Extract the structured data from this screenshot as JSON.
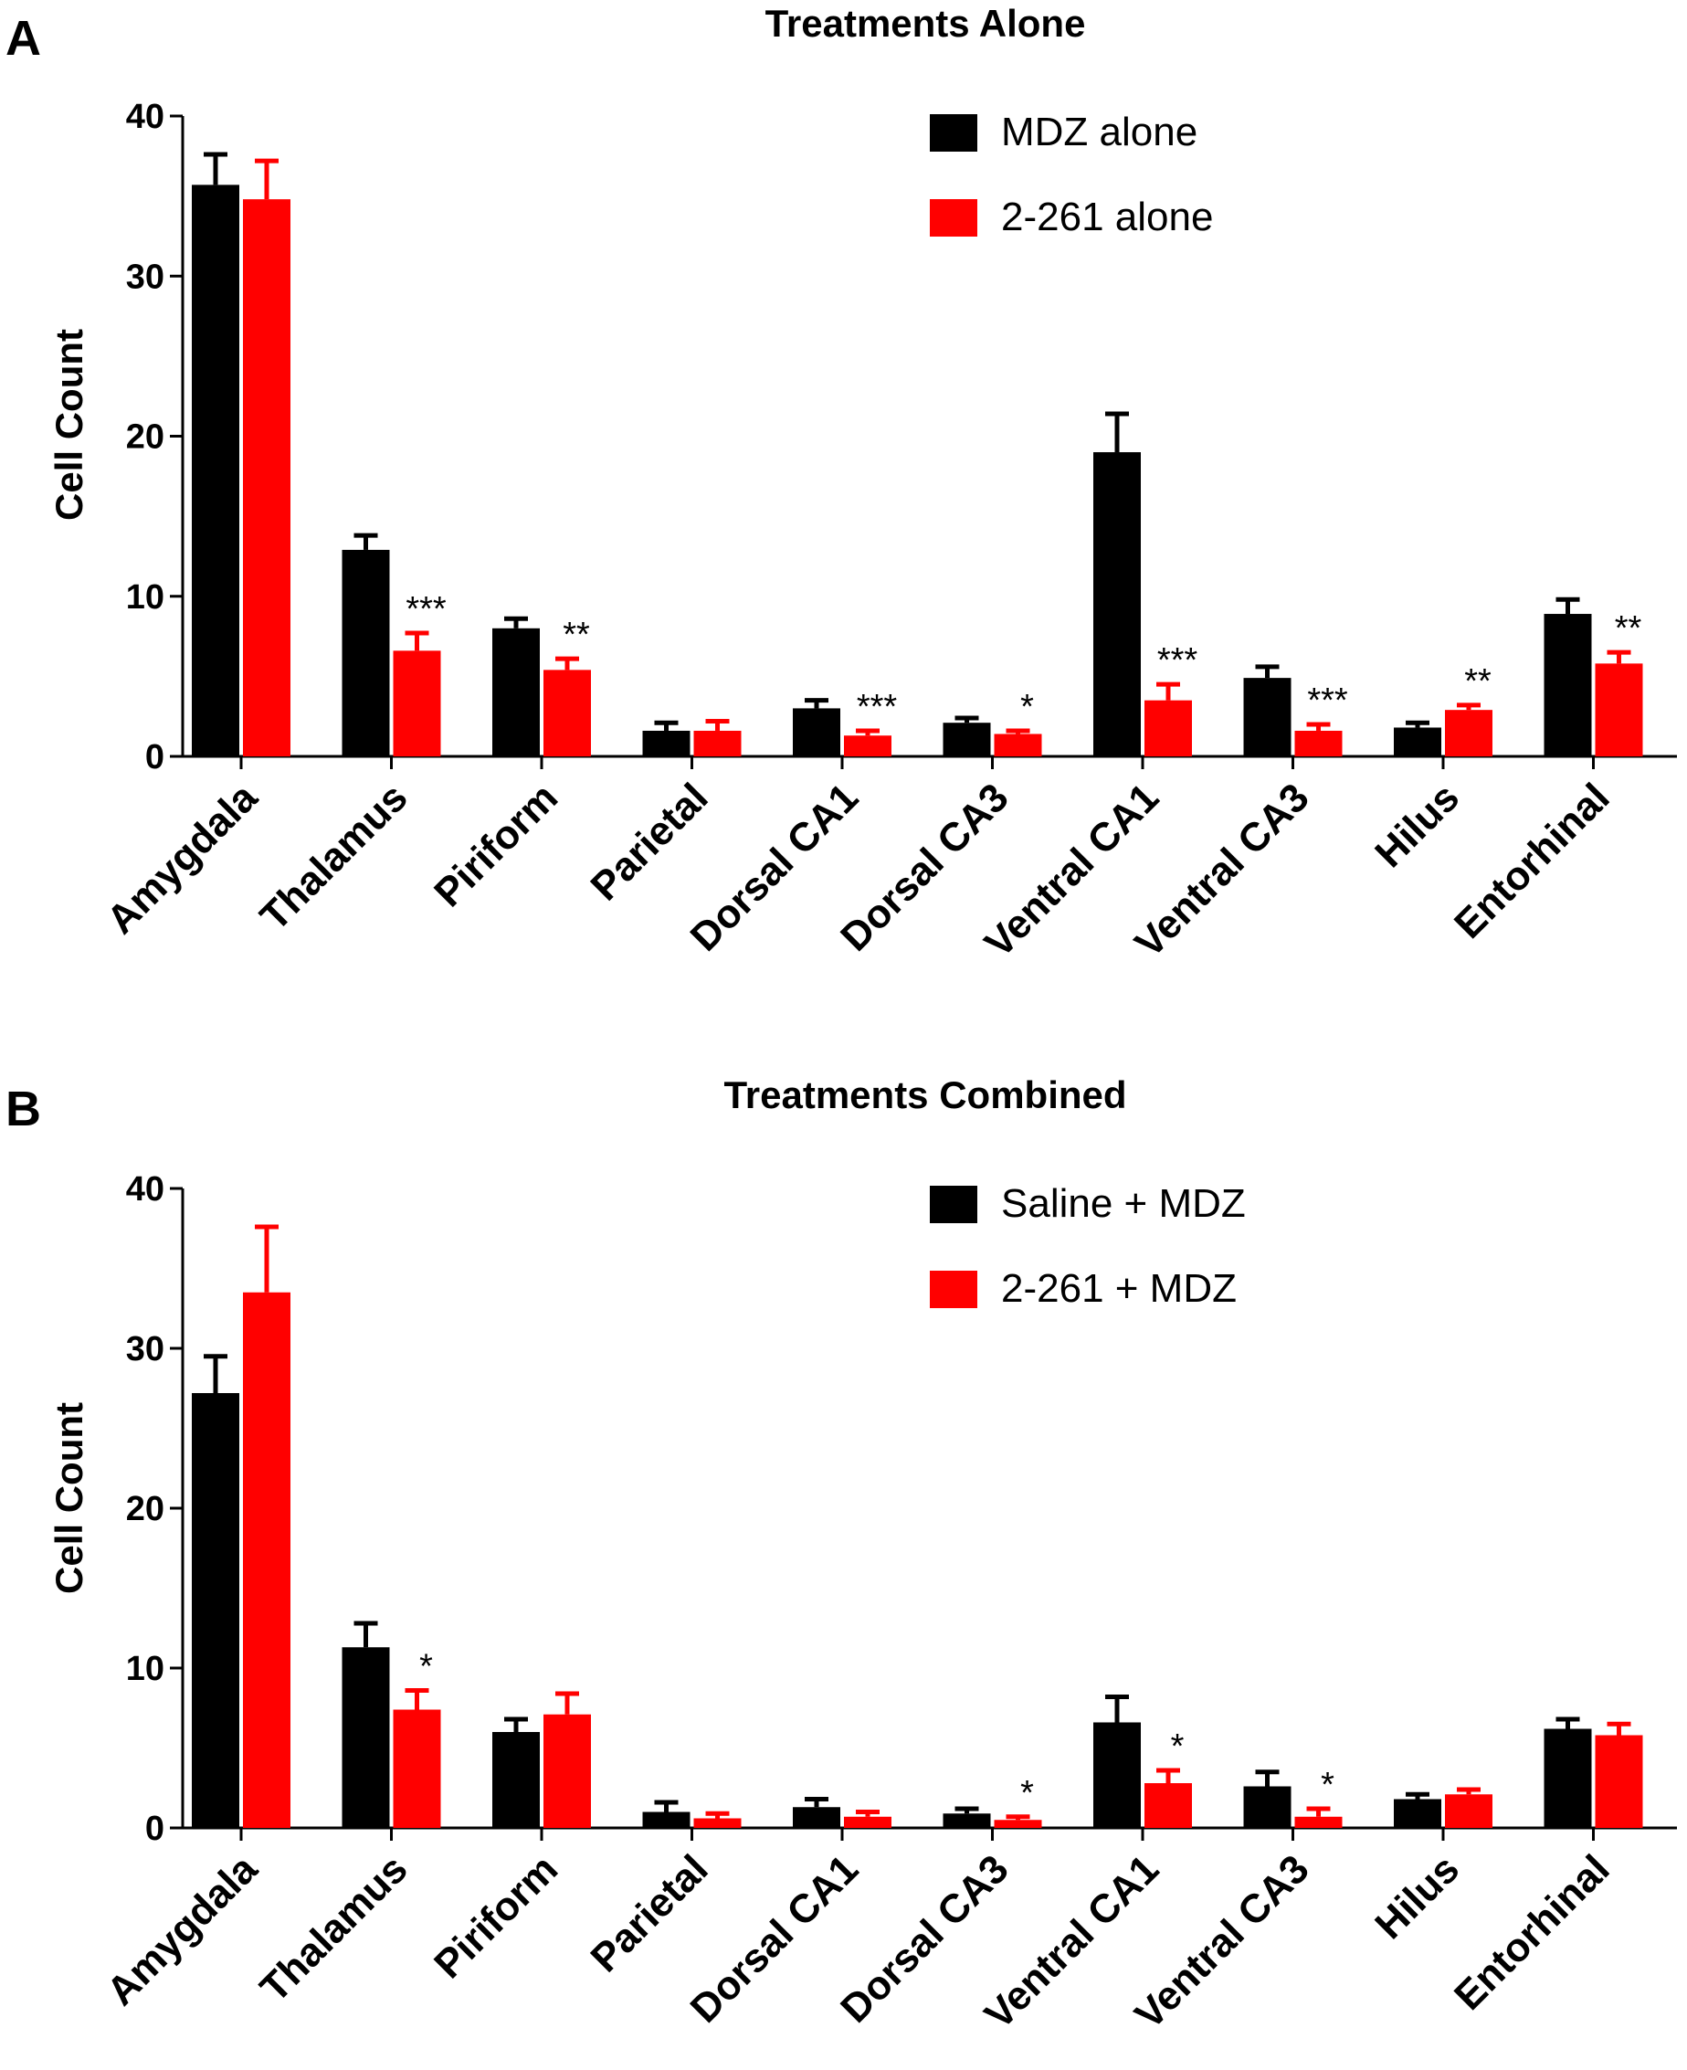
{
  "colors": {
    "series1": "#000000",
    "series2": "#ff0000"
  },
  "chart_data": [
    {
      "panel": "A",
      "type": "bar",
      "title": "Treatments Alone",
      "ylabel": "Cell Count",
      "xlabel": "",
      "ylim": [
        0,
        40
      ],
      "yticks": [
        0,
        10,
        20,
        30,
        40
      ],
      "legend_position": "top-right",
      "categories": [
        "Amygdala",
        "Thalamus",
        "Piriform",
        "Parietal",
        "Dorsal CA1",
        "Dorsal CA3",
        "Ventral CA1",
        "Ventral CA3",
        "Hilus",
        "Entorhinal"
      ],
      "series": [
        {
          "name": "MDZ alone",
          "color": "#000000",
          "values": [
            35.7,
            12.9,
            8.0,
            1.6,
            3.0,
            2.1,
            19.0,
            4.9,
            1.8,
            8.9
          ],
          "errors": [
            1.9,
            0.9,
            0.6,
            0.5,
            0.5,
            0.3,
            2.4,
            0.7,
            0.3,
            0.9
          ]
        },
        {
          "name": "2-261 alone",
          "color": "#ff0000",
          "values": [
            34.8,
            6.6,
            5.4,
            1.6,
            1.3,
            1.4,
            3.5,
            1.6,
            2.9,
            5.8
          ],
          "errors": [
            2.4,
            1.1,
            0.7,
            0.6,
            0.3,
            0.2,
            1.0,
            0.4,
            0.3,
            0.7
          ]
        }
      ],
      "significance": [
        "",
        "***",
        "**",
        "",
        "***",
        "*",
        "***",
        "***",
        "**",
        "**"
      ]
    },
    {
      "panel": "B",
      "type": "bar",
      "title": "Treatments Combined",
      "ylabel": "Cell Count",
      "xlabel": "",
      "ylim": [
        0,
        40
      ],
      "yticks": [
        0,
        10,
        20,
        30,
        40
      ],
      "legend_position": "top-right",
      "categories": [
        "Amygdala",
        "Thalamus",
        "Piriform",
        "Parietal",
        "Dorsal CA1",
        "Dorsal CA3",
        "Ventral CA1",
        "Ventral CA3",
        "Hilus",
        "Entorhinal"
      ],
      "series": [
        {
          "name": "Saline + MDZ",
          "color": "#000000",
          "values": [
            27.2,
            11.3,
            6.0,
            1.0,
            1.3,
            0.9,
            6.6,
            2.6,
            1.8,
            6.2
          ],
          "errors": [
            2.3,
            1.5,
            0.8,
            0.6,
            0.5,
            0.3,
            1.6,
            0.9,
            0.3,
            0.6
          ]
        },
        {
          "name": "2-261 + MDZ",
          "color": "#ff0000",
          "values": [
            33.5,
            7.4,
            7.1,
            0.6,
            0.7,
            0.5,
            2.8,
            0.7,
            2.1,
            5.8
          ],
          "errors": [
            4.1,
            1.2,
            1.3,
            0.3,
            0.3,
            0.2,
            0.8,
            0.5,
            0.3,
            0.7
          ]
        }
      ],
      "significance": [
        "",
        "*",
        "",
        "",
        "",
        "*",
        "*",
        "*",
        "",
        ""
      ]
    }
  ]
}
